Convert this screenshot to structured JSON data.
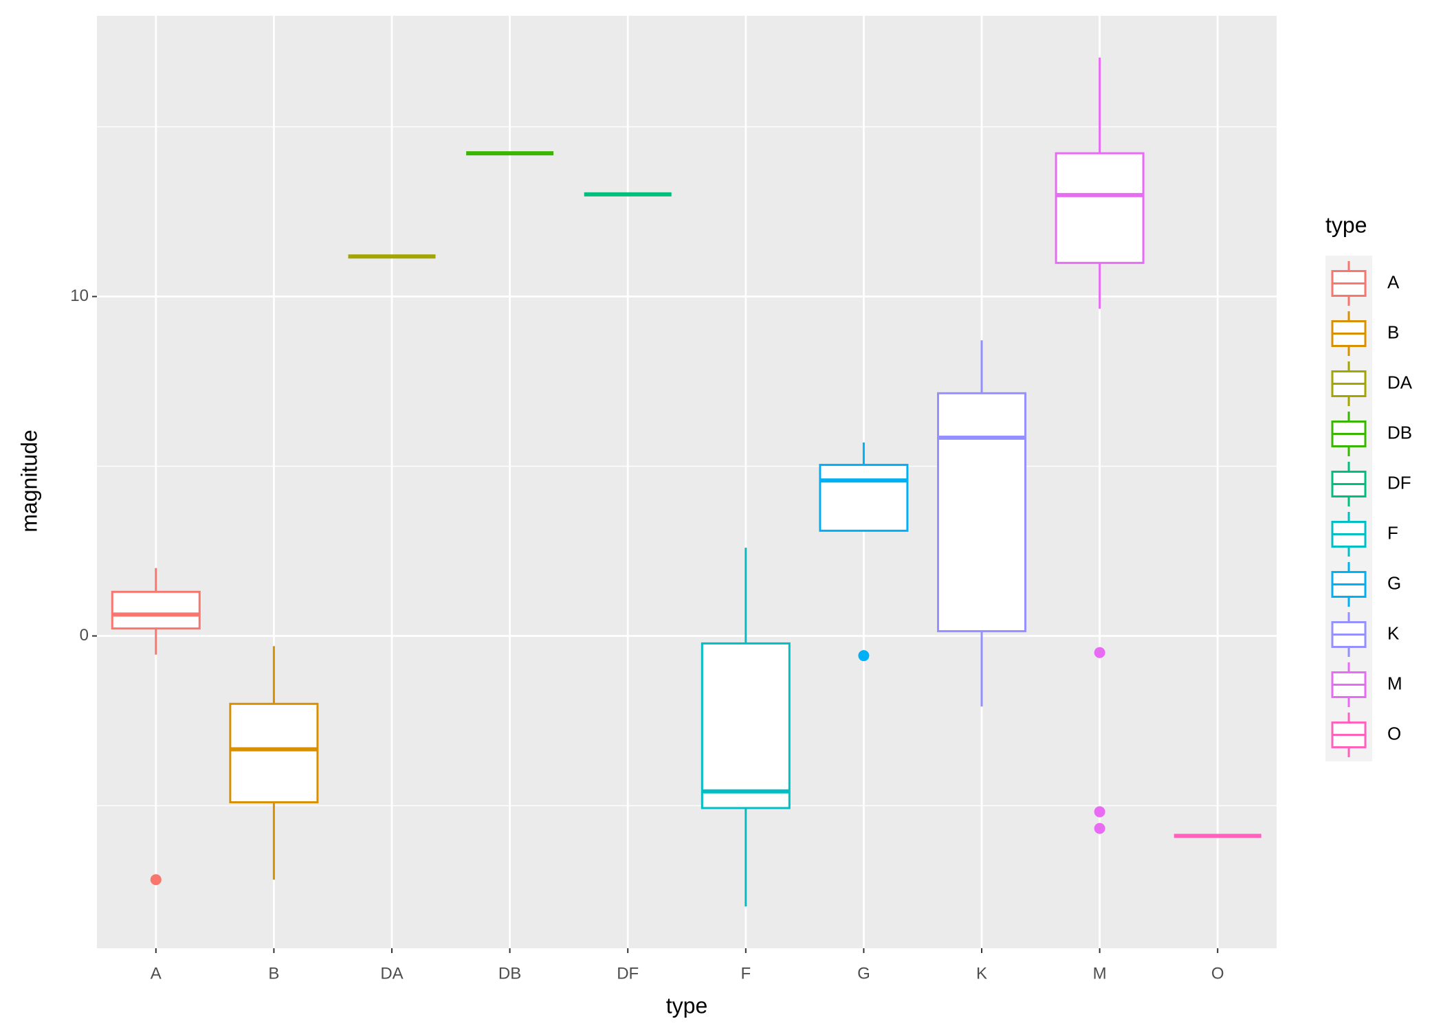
{
  "chart_data": {
    "type": "boxplot",
    "x_label": "type",
    "y_label": "magnitude",
    "legend_title": "type",
    "categories": [
      "A",
      "B",
      "DA",
      "DB",
      "DF",
      "F",
      "G",
      "K",
      "M",
      "O"
    ],
    "series": [
      {
        "name": "A",
        "color": "#F8766D",
        "whisker_low": -0.55,
        "q1": 0.22,
        "median": 0.63,
        "q3": 1.3,
        "whisker_high": 2.0,
        "outliers": [
          -7.18
        ]
      },
      {
        "name": "B",
        "color": "#D89000",
        "whisker_low": -7.18,
        "q1": -4.9,
        "median": -3.34,
        "q3": -2.0,
        "whisker_high": -0.3,
        "outliers": []
      },
      {
        "name": "DA",
        "color": "#A3A500",
        "whisker_low": 11.18,
        "q1": 11.18,
        "median": 11.18,
        "q3": 11.18,
        "whisker_high": 11.18,
        "outliers": []
      },
      {
        "name": "DB",
        "color": "#39B600",
        "whisker_low": 14.22,
        "q1": 14.22,
        "median": 14.22,
        "q3": 14.22,
        "whisker_high": 14.22,
        "outliers": []
      },
      {
        "name": "DF",
        "color": "#00BF7D",
        "whisker_low": 13.01,
        "q1": 13.01,
        "median": 13.01,
        "q3": 13.01,
        "whisker_high": 13.01,
        "outliers": []
      },
      {
        "name": "F",
        "color": "#00BFC4",
        "whisker_low": -7.97,
        "q1": -5.07,
        "median": -4.58,
        "q3": -0.22,
        "whisker_high": 2.6,
        "outliers": []
      },
      {
        "name": "G",
        "color": "#00B0F6",
        "whisker_low": 3.1,
        "q1": 3.1,
        "median": 4.58,
        "q3": 5.04,
        "whisker_high": 5.7,
        "outliers": [
          -0.58
        ]
      },
      {
        "name": "K",
        "color": "#9590FF",
        "whisker_low": -2.08,
        "q1": 0.14,
        "median": 5.84,
        "q3": 7.15,
        "whisker_high": 8.71,
        "outliers": []
      },
      {
        "name": "M",
        "color": "#E76BF3",
        "whisker_low": 9.64,
        "q1": 10.99,
        "median": 12.99,
        "q3": 14.22,
        "whisker_high": 17.04,
        "outliers": [
          -0.49,
          -5.18,
          -5.67
        ]
      },
      {
        "name": "O",
        "color": "#FF62BC",
        "whisker_low": -5.89,
        "q1": -5.89,
        "median": -5.89,
        "q3": -5.89,
        "whisker_high": -5.89,
        "outliers": []
      }
    ],
    "ylim": [
      -9.2,
      18.27
    ],
    "yticks": [
      0,
      10
    ],
    "y_minor_ticks": [
      -5,
      5,
      15
    ],
    "grid": true,
    "legend_position": "right"
  }
}
